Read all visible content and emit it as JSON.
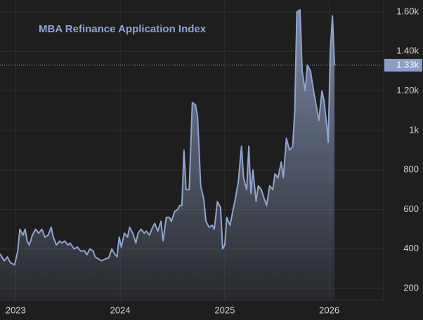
{
  "chart_data": {
    "type": "area",
    "title": "MBA Refinance Application Index",
    "x": [
      2022.85,
      2022.89,
      2022.92,
      2022.95,
      2022.99,
      2023.02,
      2023.04,
      2023.07,
      2023.09,
      2023.11,
      2023.13,
      2023.16,
      2023.19,
      2023.22,
      2023.25,
      2023.28,
      2023.31,
      2023.34,
      2023.36,
      2023.39,
      2023.42,
      2023.44,
      2023.47,
      2023.5,
      2023.52,
      2023.56,
      2023.59,
      2023.62,
      2023.66,
      2023.68,
      2023.71,
      2023.74,
      2023.76,
      2023.79,
      2023.82,
      2023.86,
      2023.89,
      2023.92,
      2023.94,
      2023.97,
      2023.99,
      2024.01,
      2024.04,
      2024.07,
      2024.09,
      2024.12,
      2024.15,
      2024.17,
      2024.2,
      2024.23,
      2024.25,
      2024.28,
      2024.31,
      2024.33,
      2024.36,
      2024.39,
      2024.41,
      2024.44,
      2024.47,
      2024.49,
      2024.52,
      2024.55,
      2024.57,
      2024.59,
      2024.61,
      2024.63,
      2024.66,
      2024.69,
      2024.72,
      2024.74,
      2024.77,
      2024.8,
      2024.82,
      2024.85,
      2024.88,
      2024.9,
      2024.93,
      2024.96,
      2024.98,
      2025.0,
      2025.02,
      2025.05,
      2025.08,
      2025.1,
      2025.13,
      2025.16,
      2025.18,
      2025.21,
      2025.23,
      2025.25,
      2025.27,
      2025.3,
      2025.32,
      2025.35,
      2025.38,
      2025.4,
      2025.43,
      2025.46,
      2025.48,
      2025.51,
      2025.54,
      2025.56,
      2025.59,
      2025.62,
      2025.65,
      2025.67,
      2025.69,
      2025.72,
      2025.74,
      2025.77,
      2025.79,
      2025.82,
      2025.85,
      2025.87,
      2025.9,
      2025.93,
      2025.95,
      2025.98,
      2025.99,
      2026.01,
      2026.03,
      2026.05
    ],
    "values": [
      375,
      340,
      360,
      330,
      320,
      390,
      500,
      470,
      500,
      440,
      420,
      470,
      500,
      480,
      500,
      460,
      470,
      510,
      460,
      420,
      440,
      430,
      440,
      420,
      430,
      400,
      410,
      390,
      390,
      370,
      400,
      390,
      360,
      350,
      340,
      350,
      355,
      400,
      380,
      360,
      460,
      410,
      480,
      460,
      510,
      480,
      430,
      480,
      500,
      480,
      490,
      470,
      510,
      530,
      490,
      540,
      440,
      560,
      560,
      540,
      590,
      600,
      620,
      620,
      900,
      700,
      700,
      1140,
      1130,
      1070,
      720,
      650,
      540,
      510,
      520,
      500,
      640,
      610,
      400,
      420,
      560,
      520,
      600,
      650,
      740,
      920,
      760,
      700,
      920,
      680,
      800,
      640,
      720,
      700,
      650,
      620,
      720,
      700,
      780,
      760,
      840,
      760,
      960,
      900,
      920,
      1100,
      1600,
      1610,
      1300,
      1200,
      1330,
      1300,
      1200,
      1140,
      1050,
      1200,
      1150,
      1000,
      940,
      1400,
      1580,
      1330
    ],
    "last_value": {
      "value": 1330,
      "label": "1.33k"
    },
    "xlim": [
      2022.85,
      2026.52
    ],
    "xticks": [
      2023,
      2024,
      2025,
      2026
    ],
    "ylim": [
      140,
      1660
    ],
    "yticks": [
      200,
      400,
      600,
      800,
      {
        "value": 1000,
        "label": "1k"
      },
      {
        "value": 1200,
        "label": "1.20k"
      },
      {
        "value": 1400,
        "label": "1.40k"
      },
      {
        "value": 1600,
        "label": "1.60k"
      }
    ],
    "color": "#8fa4d0",
    "grid": true
  }
}
